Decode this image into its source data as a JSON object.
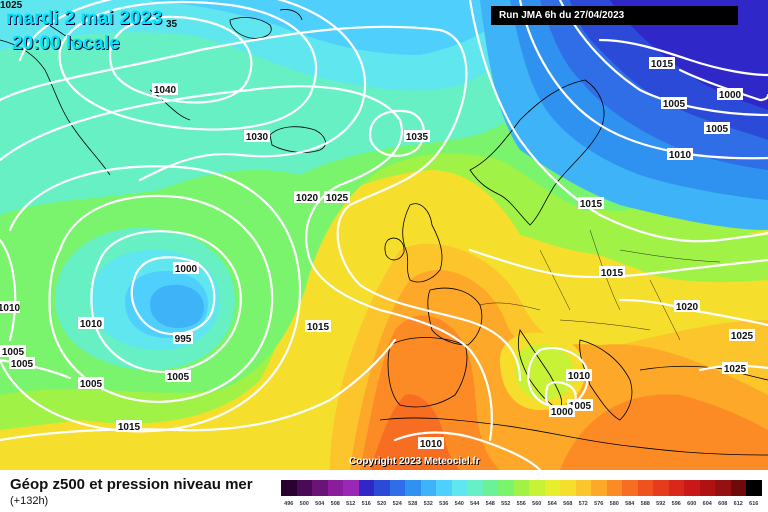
{
  "header": {
    "date_line": "mardi 2 mai 2023",
    "time_line": "20:00 locale",
    "corner_fragment": "35",
    "top_left_fragment": "1025",
    "run_info": "Run JMA 6h du 27/04/2023",
    "copyright": "Copyright 2023 Meteociel.fr"
  },
  "footer": {
    "title": "Géop z500 et pression niveau mer",
    "forecast_hour": "(+132h)"
  },
  "color_scale": {
    "values": [
      "496",
      "500",
      "504",
      "508",
      "512",
      "516",
      "520",
      "524",
      "528",
      "532",
      "536",
      "540",
      "544",
      "548",
      "552",
      "556",
      "560",
      "564",
      "568",
      "572",
      "576",
      "580",
      "584",
      "588",
      "592",
      "596",
      "600",
      "604",
      "608",
      "612",
      "616"
    ],
    "colors": [
      "#2a0030",
      "#4a0a55",
      "#6a1478",
      "#8a1e9a",
      "#9a28b4",
      "#2f27c8",
      "#2c4ad8",
      "#2f6ee6",
      "#2f92f0",
      "#3fb3f7",
      "#4fd0fc",
      "#5fe6ef",
      "#67f0c4",
      "#6bf299",
      "#79f46c",
      "#a1f247",
      "#c8f235",
      "#e6ef2e",
      "#f6de2c",
      "#fcc52b",
      "#fda829",
      "#fc8b26",
      "#f76d22",
      "#ef521f",
      "#e63b1c",
      "#d9271a",
      "#c81818",
      "#b01212",
      "#951010",
      "#700a0a",
      "#000000"
    ]
  },
  "pressure_labels": [
    {
      "text": "1040"
    },
    {
      "text": "1030"
    },
    {
      "text": "1035"
    },
    {
      "text": "1020"
    },
    {
      "text": "1025"
    },
    {
      "text": "1000"
    },
    {
      "text": "995"
    },
    {
      "text": "1010"
    },
    {
      "text": "1010"
    },
    {
      "text": "1005"
    },
    {
      "text": "1005"
    },
    {
      "text": "1005"
    },
    {
      "text": "1005"
    },
    {
      "text": "1015"
    },
    {
      "text": "1015"
    },
    {
      "text": "1015"
    },
    {
      "text": "1015"
    },
    {
      "text": "1005"
    },
    {
      "text": "1000"
    },
    {
      "text": "1005"
    },
    {
      "text": "1010"
    },
    {
      "text": "1015"
    },
    {
      "text": "1020"
    },
    {
      "text": "1025"
    },
    {
      "text": "1025"
    },
    {
      "text": "1010"
    },
    {
      "text": "1005"
    },
    {
      "text": "1000"
    },
    {
      "text": "1010"
    }
  ]
}
